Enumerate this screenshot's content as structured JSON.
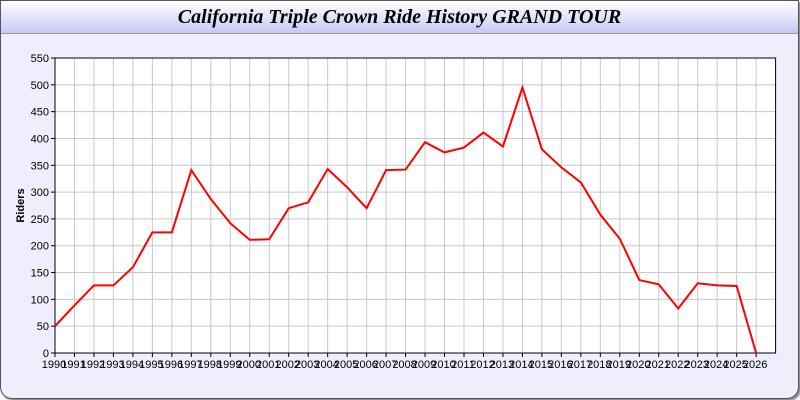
{
  "title": "California Triple Crown Ride History GRAND TOUR",
  "chart_data": {
    "type": "line",
    "title": "California Triple Crown Ride History GRAND TOUR",
    "xlabel": "",
    "ylabel": "Riders",
    "xlim": [
      1990,
      2027
    ],
    "ylim": [
      0,
      550
    ],
    "yticks": [
      0,
      50,
      100,
      150,
      200,
      250,
      300,
      350,
      400,
      450,
      500,
      550
    ],
    "grid": true,
    "line_color": "#ff0000",
    "x": [
      1990,
      1991,
      1992,
      1993,
      1994,
      1995,
      1996,
      1997,
      1998,
      1999,
      2000,
      2001,
      2002,
      2003,
      2004,
      2005,
      2006,
      2007,
      2008,
      2009,
      2010,
      2011,
      2012,
      2013,
      2014,
      2015,
      2016,
      2017,
      2018,
      2019,
      2020,
      2021,
      2022,
      2023,
      2024,
      2025,
      2026
    ],
    "values": [
      50,
      89,
      126,
      126,
      160,
      225,
      225,
      341,
      287,
      242,
      211,
      212,
      270,
      281,
      343,
      309,
      270,
      341,
      342,
      393,
      374,
      383,
      411,
      385,
      495,
      380,
      346,
      318,
      258,
      213,
      136,
      128,
      83,
      130,
      126,
      125,
      0
    ]
  }
}
